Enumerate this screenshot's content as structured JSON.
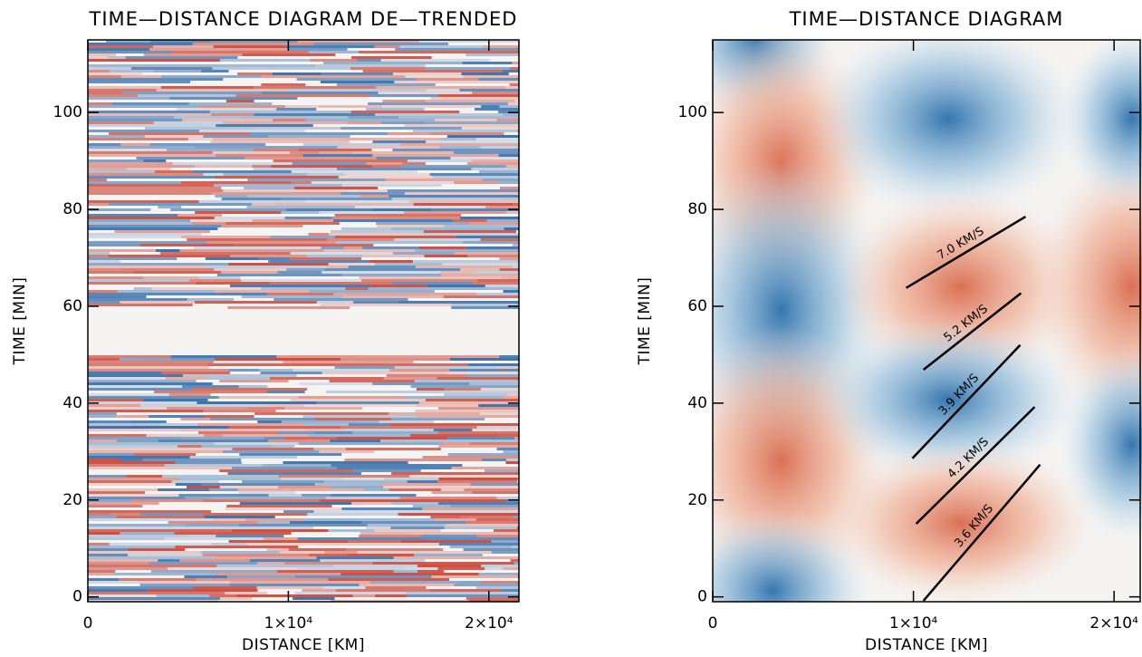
{
  "chart_data": [
    {
      "type": "heatmap",
      "title": "TIME—DISTANCE DIAGRAM DE—TRENDED",
      "xlabel": "DISTANCE [KM]",
      "ylabel": "TIME [MIN]",
      "xlim": [
        0,
        21500
      ],
      "ylim": [
        -1,
        115
      ],
      "xticks": [
        0,
        {
          "value": 10000,
          "label": "1×10⁴"
        },
        {
          "value": 20000,
          "label": "2×10⁴"
        }
      ],
      "yticks": [
        0,
        20,
        40,
        60,
        80,
        100
      ]
    },
    {
      "type": "heatmap",
      "title": "TIME—DISTANCE DIAGRAM",
      "xlabel": "DISTANCE [KM]",
      "ylabel": "TIME [MIN]",
      "xlim": [
        0,
        21300
      ],
      "ylim": [
        -1,
        115
      ],
      "xticks": [
        0,
        {
          "value": 10000,
          "label": "1×10⁴"
        },
        {
          "value": 20000,
          "label": "2×10⁴"
        }
      ],
      "yticks": [
        0,
        20,
        40,
        60,
        80,
        100
      ],
      "annotations": [
        {
          "label": "7.0 KM/S",
          "x": [
            9640,
            15590
          ],
          "y": [
            63.8,
            78.5
          ]
        },
        {
          "label": "5.2 KM/S",
          "x": [
            10500,
            15360
          ],
          "y": [
            46.9,
            62.7
          ]
        },
        {
          "label": "3.9 KM/S",
          "x": [
            9950,
            15320
          ],
          "y": [
            28.6,
            52.0
          ]
        },
        {
          "label": "4.2 KM/S",
          "x": [
            10140,
            16040
          ],
          "y": [
            15.1,
            39.2
          ]
        },
        {
          "label": "3.6 KM/S",
          "x": [
            10500,
            16310
          ],
          "y": [
            -0.8,
            27.3
          ]
        }
      ]
    }
  ]
}
